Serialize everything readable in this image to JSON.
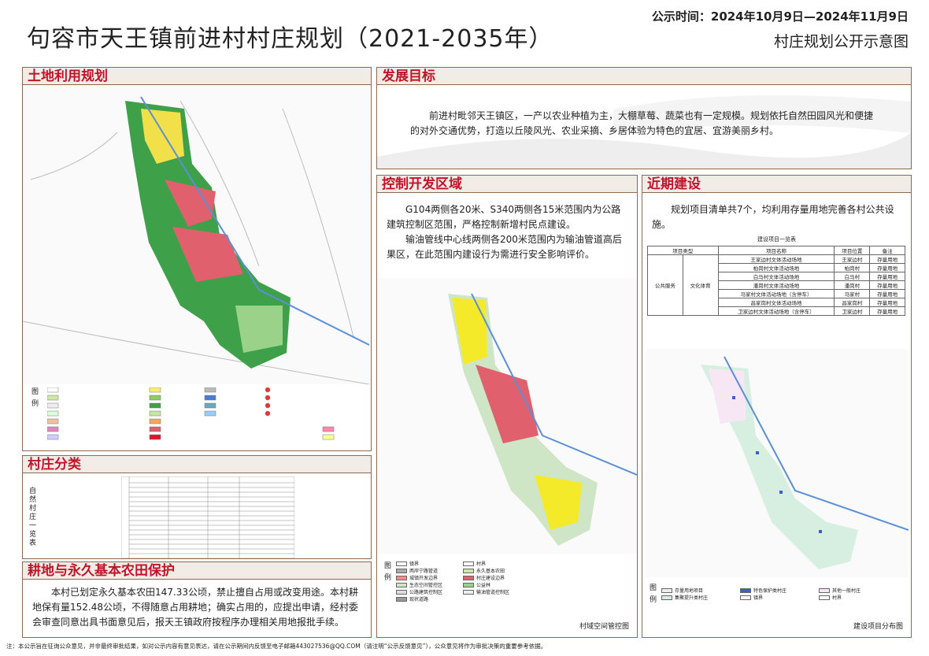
{
  "header": {
    "title": "句容市天王镇前进村村庄规划（2021-2035年）",
    "date": "公示时间：2024年10月9日—2024年11月9日",
    "subtitle": "村庄规划公开示意图"
  },
  "panels": {
    "land_use": {
      "title": "土地利用规划",
      "legend_label": "图例"
    },
    "village_class": {
      "title": "村庄分类",
      "side_label": "自然村庄一览表"
    },
    "farmland": {
      "title": "耕地与永久基本农田保护",
      "text": "本村已划定永久基本农田147.33公顷，禁止擅自占用或改变用途。本村耕地保有量152.48公顷，不得随意占用耕地；确实占用的，应提出申请，经村委会审查同意出具书面意见后，报天王镇政府按程序办理相关用地报批手续。"
    },
    "goal": {
      "title": "发展目标",
      "text": "前进村毗邻天王镇区，一产以农业种植为主，大棚草莓、蔬菜也有一定规模。规划依托自然田园风光和便捷的对外交通优势，打造以丘陵风光、农业采摘、乡居体验为特色的宜居、宜游美丽乡村。"
    },
    "control": {
      "title": "控制开发区域",
      "paragraphs": [
        "G104两侧各20米、S340两侧各15米范围内为公路建筑控制区范围，严格控制新增村民点建设。",
        "输油管线中心线两侧各200米范围内为输油管道高后果区，在此范围内建设行为需进行安全影响评价。"
      ],
      "legend_label": "图例",
      "legend": [
        "镇界",
        "村界",
        "两岸宁路管道",
        "永久基本农田",
        "城镇开发边界",
        "村庄建设边界",
        "生态空间管控区",
        "公益林",
        "公路建筑控制区",
        "输油管道控制区",
        "现状道路"
      ],
      "caption": "村域空间管控图"
    },
    "recent": {
      "title": "近期建设",
      "text": "规划项目清单共7个，均利用存量用地完善各村公共设施。",
      "table_title": "建设项目一览表",
      "columns": [
        "项目类型",
        "项目名称",
        "项目位置",
        "备注"
      ],
      "type_label": [
        "公共服务",
        "文化体育"
      ],
      "rows": [
        [
          "王家边村文体活动场地",
          "王家边村",
          "存量用地"
        ],
        [
          "柏岗村文体活动场地",
          "柏岗村",
          "存量用地"
        ],
        [
          "白马村文体活动场地",
          "白马村",
          "存量用地"
        ],
        [
          "潘岗村文体活动场地",
          "潘岗村",
          "存量用地"
        ],
        [
          "马家村文体活动场地（含停车）",
          "马家村",
          "存量用地"
        ],
        [
          "昌家岗村文体活动场地",
          "昌家岗村",
          "存量用地"
        ],
        [
          "卫家边村文体活动场地（含停车）",
          "卫家边村",
          "存量用地"
        ]
      ],
      "legend_label": "图例",
      "legend": [
        "存量用地项目",
        "特色保护类村庄",
        "其他一般村庄",
        "集聚提升类村庄",
        "镇界",
        "村界"
      ],
      "caption": "建设项目分布图"
    }
  },
  "footer": "注：本公示旨在征询公众意见，并非最终审批结果，如对公示内容有意见表达，请在公示期间内反馈至电子邮箱443027536@QQ.COM（请注明“公示反馈意见”），公众意见将作为审批决策的重要参考依据。"
}
